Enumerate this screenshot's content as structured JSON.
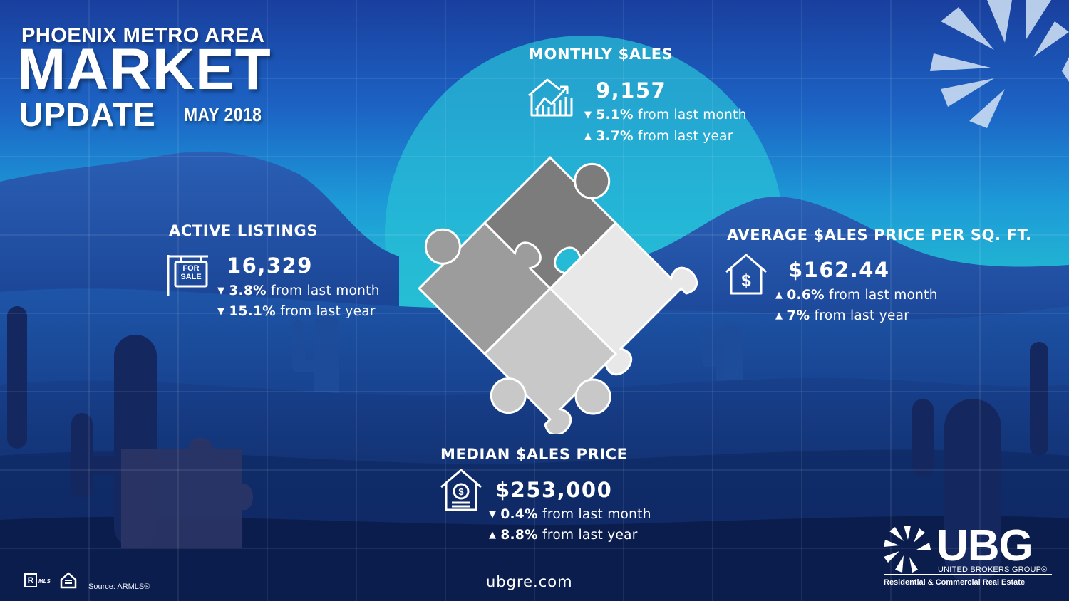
{
  "header": {
    "region": "PHOENIX METRO AREA",
    "title_line1": "MARKET",
    "title_line2": "UPDATE",
    "period": "MAY 2018"
  },
  "stats": {
    "monthly_sales": {
      "heading": "MONTHLY $ALES",
      "value": "9,157",
      "month_pct": "5.1%",
      "month_text": "from last month",
      "month_dir": "down",
      "year_pct": "3.7%",
      "year_text": "from last year",
      "year_dir": "up",
      "icon": "house-growth-chart-icon"
    },
    "active_listings": {
      "heading": "ACTIVE LISTINGS",
      "value": "16,329",
      "month_pct": "3.8%",
      "month_text": "from last month",
      "month_dir": "down",
      "year_pct": "15.1%",
      "year_text": "from last year",
      "year_dir": "down",
      "icon": "for-sale-sign-icon",
      "sign_line1": "FOR",
      "sign_line2": "SALE"
    },
    "avg_price_sqft": {
      "heading": "AVERAGE $ALES PRICE PER SQ. FT.",
      "value": "$162.44",
      "month_pct": "0.6%",
      "month_text": "from last month",
      "month_dir": "up",
      "year_pct": "7%",
      "year_text": "from last year",
      "year_dir": "up",
      "icon": "house-dollar-icon"
    },
    "median_price": {
      "heading": "MEDIAN $ALES PRICE",
      "value": "$253,000",
      "month_pct": "0.4%",
      "month_text": "from last month",
      "month_dir": "down",
      "year_pct": "8.8%",
      "year_text": "from last year",
      "year_dir": "up",
      "icon": "house-coin-icon"
    }
  },
  "footer": {
    "source": "Source:  ARMLS®",
    "website": "ubgre.com",
    "mls_badge": "MLS"
  },
  "brand": {
    "letters": "UBG",
    "name": "UNITED BROKERS GROUP®",
    "tagline": "Residential & Commercial Real Estate"
  },
  "colors": {
    "sky_top": "#1a4aa8",
    "sky_mid": "#1e8fd6",
    "teal": "#27c7c9",
    "ground_dark": "#0f2458",
    "puzzle_light": "#e6e6e6",
    "puzzle_dark": "#7a7a7a"
  }
}
